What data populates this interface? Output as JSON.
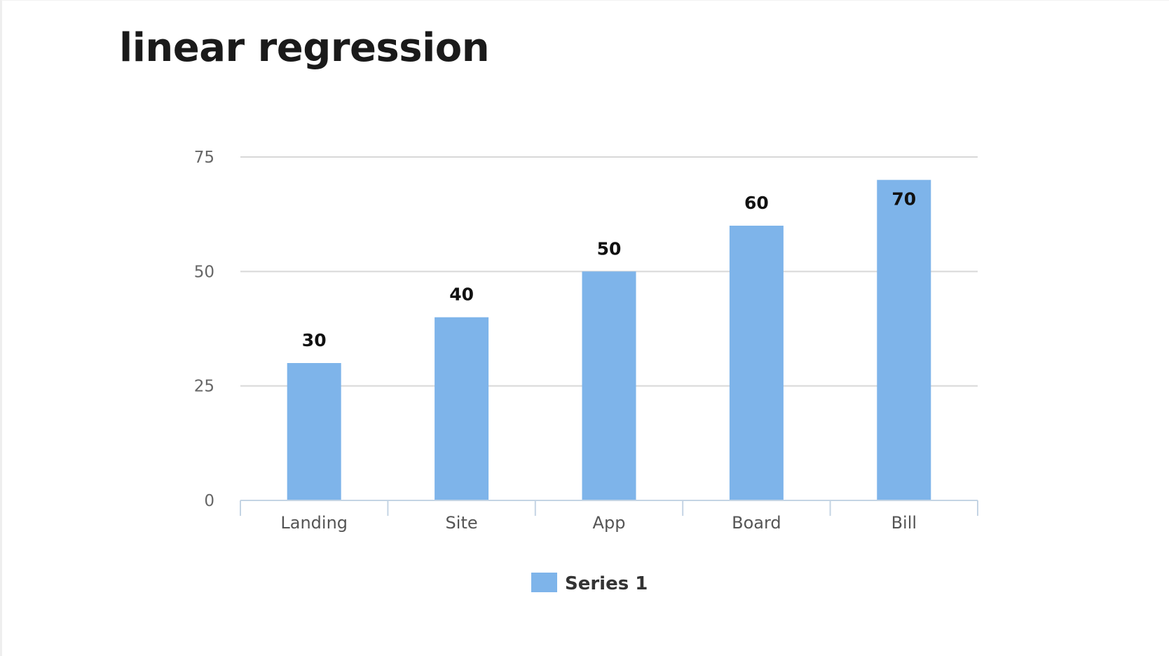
{
  "page": {
    "title": "linear regression"
  },
  "chart_data": {
    "type": "bar",
    "title": "linear regression",
    "categories": [
      "Landing",
      "Site",
      "App",
      "Board",
      "Bill"
    ],
    "series": [
      {
        "name": "Series 1",
        "values": [
          30,
          40,
          50,
          60,
          70
        ],
        "color": "#7eb4ea"
      }
    ],
    "yticks": [
      0,
      25,
      50,
      75
    ],
    "ylim": [
      0,
      75
    ],
    "xlabel": "",
    "ylabel": "",
    "grid": true,
    "legend_position": "bottom",
    "data_labels": true,
    "colors": {
      "gridline": "#d8d8d8",
      "axis": "#c4d4e4",
      "bar": "#7eb4ea"
    }
  }
}
